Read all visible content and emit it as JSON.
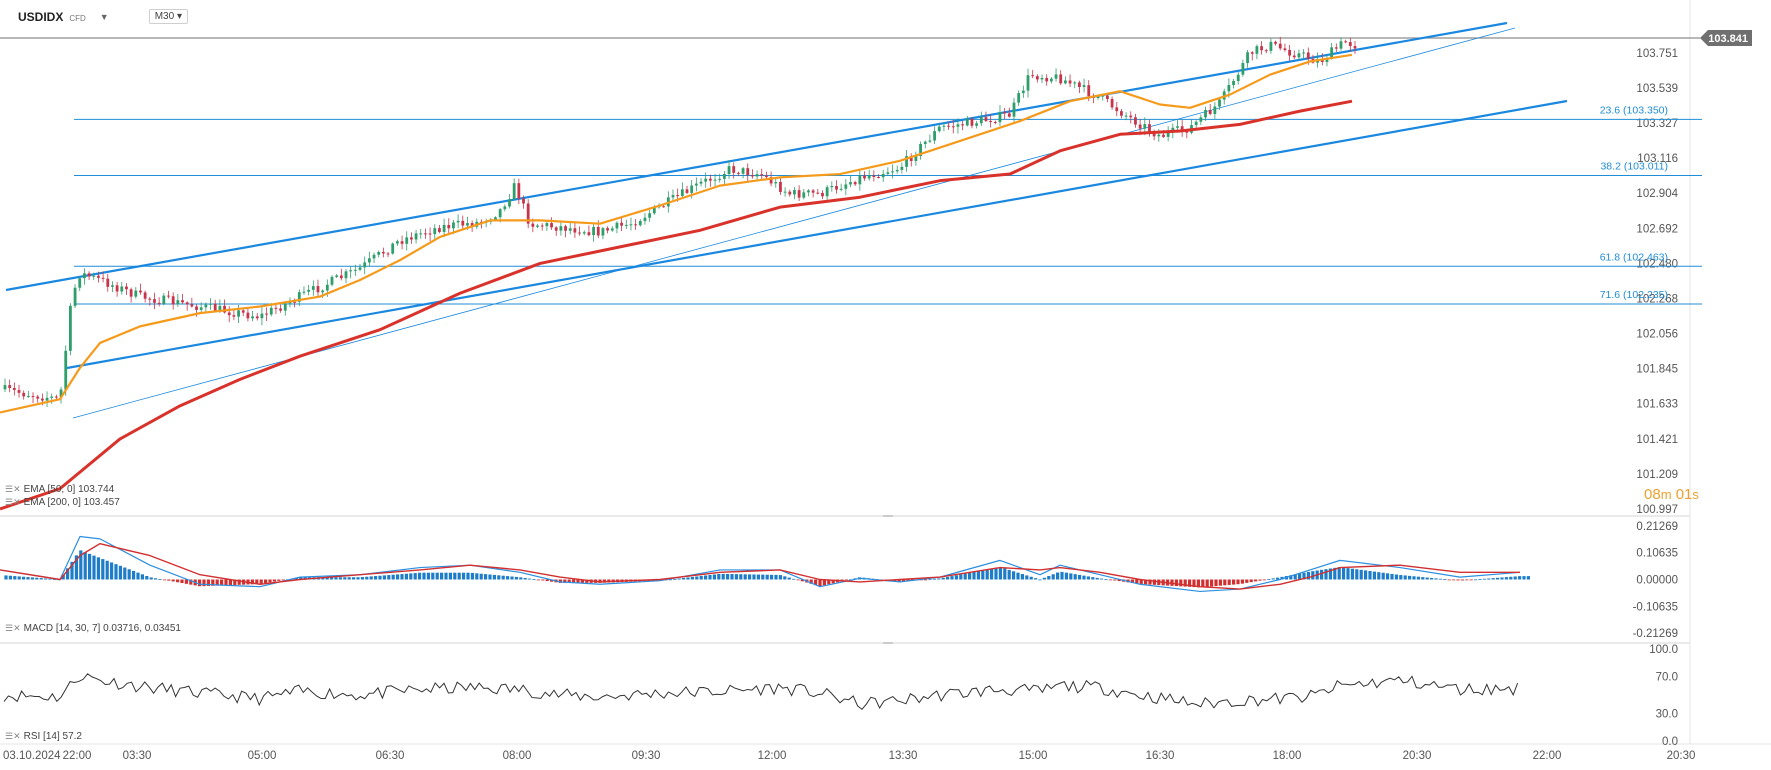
{
  "header": {
    "symbol": "USDIDX",
    "instrument_type": "CFD",
    "timeframe": "M30"
  },
  "countdown": {
    "minutes": "08",
    "minutes_unit": "m",
    "seconds": "01",
    "seconds_unit": "s"
  },
  "colors": {
    "ema50": "#f59a1b",
    "ema200": "#d9322b",
    "channel": "#1a88e0",
    "fib": "#1f8ed6",
    "price_line": "#8e8e8e",
    "macd_pos": "#1e7dc8",
    "macd_neg": "#d23030",
    "macd_signal": "#d23030",
    "macd_line": "#2b8fe0",
    "rsi": "#333333",
    "candle_up": "#2e9e6b",
    "candle_down": "#c8344a"
  },
  "chart_data": {
    "type": "candlestick",
    "x_tick_labels": [
      "03.10.2024",
      "22:00",
      "03:30",
      "05:00",
      "06:30",
      "08:00",
      "09:30",
      "12:00",
      "13:30",
      "15:00",
      "16:30",
      "18:00",
      "20:30",
      "22:00",
      "20:30"
    ],
    "price_axis": {
      "ticks": [
        "103.751",
        "103.539",
        "103.327",
        "103.116",
        "102.904",
        "102.692",
        "102.480",
        "102.268",
        "102.056",
        "101.845",
        "101.633",
        "101.421",
        "101.209",
        "100.997"
      ],
      "current_price": "103.841",
      "ylim": [
        100.997,
        103.89
      ]
    },
    "fibonacci": [
      {
        "label": "23.6 (103.350)",
        "level": 103.35
      },
      {
        "label": "38.2 (103.011)",
        "level": 103.011
      },
      {
        "label": "61.8 (102.463)",
        "level": 102.463
      },
      {
        "label": "71.6 (102.235)",
        "level": 102.235
      }
    ],
    "price_path": [
      [
        0,
        101.72
      ],
      [
        60,
        101.66
      ],
      [
        72,
        102.28
      ],
      [
        80,
        102.42
      ],
      [
        100,
        102.38
      ],
      [
        140,
        102.28
      ],
      [
        200,
        102.22
      ],
      [
        260,
        102.16
      ],
      [
        300,
        102.28
      ],
      [
        360,
        102.45
      ],
      [
        400,
        102.62
      ],
      [
        440,
        102.7
      ],
      [
        480,
        102.73
      ],
      [
        500,
        102.8
      ],
      [
        515,
        102.95
      ],
      [
        530,
        102.72
      ],
      [
        560,
        102.7
      ],
      [
        600,
        102.67
      ],
      [
        630,
        102.72
      ],
      [
        660,
        102.82
      ],
      [
        700,
        102.96
      ],
      [
        730,
        103.05
      ],
      [
        760,
        103.02
      ],
      [
        790,
        102.9
      ],
      [
        820,
        102.9
      ],
      [
        860,
        103.0
      ],
      [
        900,
        103.06
      ],
      [
        940,
        103.3
      ],
      [
        980,
        103.34
      ],
      [
        1010,
        103.38
      ],
      [
        1030,
        103.62
      ],
      [
        1060,
        103.6
      ],
      [
        1100,
        103.48
      ],
      [
        1130,
        103.36
      ],
      [
        1160,
        103.25
      ],
      [
        1190,
        103.3
      ],
      [
        1220,
        103.45
      ],
      [
        1250,
        103.75
      ],
      [
        1270,
        103.8
      ],
      [
        1300,
        103.74
      ],
      [
        1320,
        103.7
      ],
      [
        1345,
        103.82
      ],
      [
        1355,
        103.8
      ]
    ],
    "indicators": {
      "ema_fast": {
        "label": "EMA [50, 0] 103.744",
        "path": [
          [
            0,
            101.58
          ],
          [
            60,
            101.66
          ],
          [
            80,
            101.85
          ],
          [
            100,
            102.0
          ],
          [
            140,
            102.1
          ],
          [
            200,
            102.18
          ],
          [
            260,
            102.22
          ],
          [
            320,
            102.28
          ],
          [
            360,
            102.38
          ],
          [
            400,
            102.5
          ],
          [
            440,
            102.64
          ],
          [
            490,
            102.74
          ],
          [
            540,
            102.74
          ],
          [
            600,
            102.72
          ],
          [
            660,
            102.83
          ],
          [
            720,
            102.95
          ],
          [
            780,
            103.0
          ],
          [
            840,
            103.02
          ],
          [
            900,
            103.1
          ],
          [
            960,
            103.22
          ],
          [
            1020,
            103.34
          ],
          [
            1070,
            103.46
          ],
          [
            1120,
            103.52
          ],
          [
            1160,
            103.44
          ],
          [
            1190,
            103.42
          ],
          [
            1230,
            103.5
          ],
          [
            1270,
            103.62
          ],
          [
            1310,
            103.7
          ],
          [
            1352,
            103.74
          ]
        ]
      },
      "ema_slow": {
        "label": "EMA [200, 0] 103.457",
        "path": [
          [
            0,
            100.997
          ],
          [
            60,
            101.12
          ],
          [
            120,
            101.42
          ],
          [
            180,
            101.62
          ],
          [
            240,
            101.78
          ],
          [
            300,
            101.92
          ],
          [
            380,
            102.08
          ],
          [
            460,
            102.3
          ],
          [
            540,
            102.48
          ],
          [
            620,
            102.58
          ],
          [
            700,
            102.68
          ],
          [
            780,
            102.82
          ],
          [
            860,
            102.88
          ],
          [
            940,
            102.98
          ],
          [
            1010,
            103.02
          ],
          [
            1060,
            103.16
          ],
          [
            1120,
            103.26
          ],
          [
            1180,
            103.28
          ],
          [
            1240,
            103.32
          ],
          [
            1300,
            103.4
          ],
          [
            1352,
            103.46
          ]
        ]
      },
      "macd": {
        "label": "MACD [14, 30, 7] 0.03716,  0.03451",
        "ticks": [
          "0.21269",
          "0.10635",
          "0.00000",
          "-0.10635",
          "-0.21269"
        ],
        "ylim": [
          -0.21269,
          0.21269
        ]
      },
      "rsi": {
        "label": "RSI [14] 57.2",
        "ticks": [
          "100.0",
          "70.0",
          "30.0",
          "0.0"
        ],
        "ylim": [
          0,
          100
        ]
      }
    }
  }
}
